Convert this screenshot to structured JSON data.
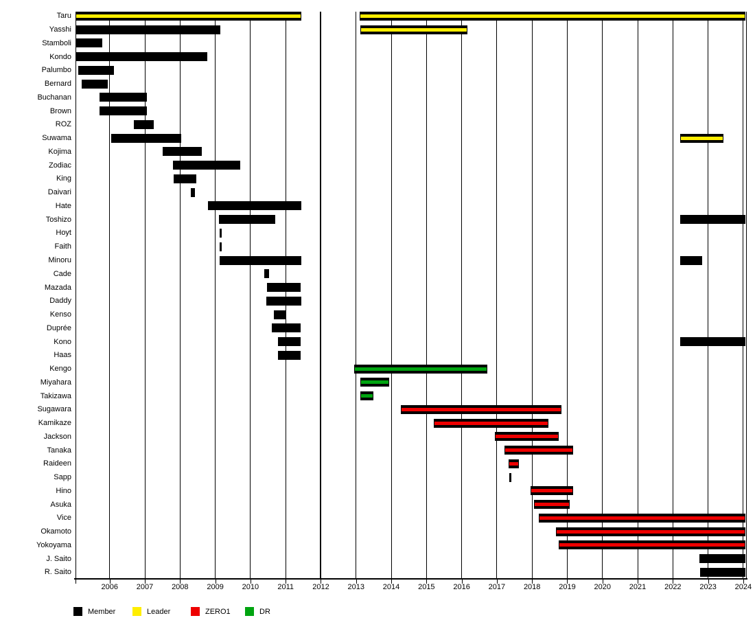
{
  "chart_data": {
    "type": "gantt",
    "title": "",
    "x_axis": {
      "range": [
        2005.03,
        2024.07
      ],
      "tick_years": [
        2006,
        2007,
        2008,
        2009,
        2010,
        2011,
        2012,
        2013,
        2014,
        2015,
        2016,
        2017,
        2018,
        2019,
        2020,
        2021,
        2022,
        2023,
        2024
      ]
    },
    "legend": [
      {
        "label": "Member",
        "color": "#000000"
      },
      {
        "label": "Leader",
        "color": "#ffee00"
      },
      {
        "label": "ZERO1",
        "color": "#ee0000"
      },
      {
        "label": "DR",
        "color": "#00a410"
      }
    ],
    "rows": [
      {
        "name": "Taru",
        "bars": [
          {
            "start": 2005.03,
            "end": 2011.45,
            "type": "Leader"
          },
          {
            "start": 2013.1,
            "end": 2024.06,
            "type": "Leader"
          }
        ]
      },
      {
        "name": "Yasshi",
        "bars": [
          {
            "start": 2005.03,
            "end": 2009.15,
            "type": "Member"
          },
          {
            "start": 2013.12,
            "end": 2016.17,
            "type": "Leader"
          }
        ]
      },
      {
        "name": "Stamboli",
        "bars": [
          {
            "start": 2005.03,
            "end": 2005.8,
            "type": "Member"
          }
        ]
      },
      {
        "name": "Kondo",
        "bars": [
          {
            "start": 2005.03,
            "end": 2008.77,
            "type": "Member"
          }
        ]
      },
      {
        "name": "Palumbo",
        "bars": [
          {
            "start": 2005.1,
            "end": 2006.13,
            "type": "Member"
          }
        ]
      },
      {
        "name": "Bernard",
        "bars": [
          {
            "start": 2005.2,
            "end": 2005.95,
            "type": "Member"
          }
        ]
      },
      {
        "name": "Buchanan",
        "bars": [
          {
            "start": 2005.72,
            "end": 2007.05,
            "type": "Member"
          }
        ]
      },
      {
        "name": "Brown",
        "bars": [
          {
            "start": 2005.72,
            "end": 2007.05,
            "type": "Member"
          }
        ]
      },
      {
        "name": "ROZ",
        "bars": [
          {
            "start": 2006.68,
            "end": 2007.26,
            "type": "Member"
          }
        ]
      },
      {
        "name": "Suwama",
        "bars": [
          {
            "start": 2006.05,
            "end": 2008.03,
            "type": "Member"
          },
          {
            "start": 2022.2,
            "end": 2023.43,
            "type": "Leader"
          }
        ]
      },
      {
        "name": "Kojima",
        "bars": [
          {
            "start": 2007.51,
            "end": 2008.61,
            "type": "Member"
          }
        ]
      },
      {
        "name": "Zodiac",
        "bars": [
          {
            "start": 2007.8,
            "end": 2009.71,
            "type": "Member"
          }
        ]
      },
      {
        "name": "King",
        "bars": [
          {
            "start": 2007.81,
            "end": 2008.47,
            "type": "Member"
          }
        ]
      },
      {
        "name": "Daivari",
        "bars": [
          {
            "start": 2008.31,
            "end": 2008.42,
            "type": "Member"
          }
        ]
      },
      {
        "name": "Hate",
        "bars": [
          {
            "start": 2008.8,
            "end": 2011.44,
            "type": "Member"
          }
        ]
      },
      {
        "name": "Toshizo",
        "bars": [
          {
            "start": 2009.11,
            "end": 2010.7,
            "type": "Member"
          },
          {
            "start": 2022.2,
            "end": 2024.06,
            "type": "Member"
          }
        ]
      },
      {
        "name": "Hoyt",
        "bars": [
          {
            "start": 2009.13,
            "end": 2009.18,
            "type": "Member"
          }
        ]
      },
      {
        "name": "Faith",
        "bars": [
          {
            "start": 2009.13,
            "end": 2009.18,
            "type": "Member"
          }
        ]
      },
      {
        "name": "Minoru",
        "bars": [
          {
            "start": 2009.12,
            "end": 2011.44,
            "type": "Member"
          },
          {
            "start": 2022.2,
            "end": 2022.83,
            "type": "Member"
          }
        ]
      },
      {
        "name": "Cade",
        "bars": [
          {
            "start": 2010.39,
            "end": 2010.53,
            "type": "Member"
          }
        ]
      },
      {
        "name": "Mazada",
        "bars": [
          {
            "start": 2010.47,
            "end": 2011.43,
            "type": "Member"
          }
        ]
      },
      {
        "name": "Daddy",
        "bars": [
          {
            "start": 2010.45,
            "end": 2011.44,
            "type": "Member"
          }
        ]
      },
      {
        "name": "Kenso",
        "bars": [
          {
            "start": 2010.66,
            "end": 2011.0,
            "type": "Member"
          }
        ]
      },
      {
        "name": "Duprée",
        "bars": [
          {
            "start": 2010.6,
            "end": 2011.43,
            "type": "Member"
          }
        ]
      },
      {
        "name": "Kono",
        "bars": [
          {
            "start": 2010.79,
            "end": 2011.42,
            "type": "Member"
          },
          {
            "start": 2022.2,
            "end": 2024.06,
            "type": "Member"
          }
        ]
      },
      {
        "name": "Haas",
        "bars": [
          {
            "start": 2010.79,
            "end": 2011.43,
            "type": "Member"
          }
        ]
      },
      {
        "name": "Kengo",
        "bars": [
          {
            "start": 2012.95,
            "end": 2016.73,
            "type": "DR"
          }
        ]
      },
      {
        "name": "Miyahara",
        "bars": [
          {
            "start": 2013.13,
            "end": 2013.95,
            "type": "DR"
          }
        ]
      },
      {
        "name": "Takizawa",
        "bars": [
          {
            "start": 2013.13,
            "end": 2013.5,
            "type": "DR"
          }
        ]
      },
      {
        "name": "Sugawara",
        "bars": [
          {
            "start": 2014.28,
            "end": 2018.84,
            "type": "ZERO1"
          }
        ]
      },
      {
        "name": "Kamikaze",
        "bars": [
          {
            "start": 2015.2,
            "end": 2018.46,
            "type": "ZERO1"
          }
        ]
      },
      {
        "name": "Jackson",
        "bars": [
          {
            "start": 2016.95,
            "end": 2018.76,
            "type": "ZERO1"
          }
        ]
      },
      {
        "name": "Tanaka",
        "bars": [
          {
            "start": 2017.22,
            "end": 2019.16,
            "type": "ZERO1"
          }
        ]
      },
      {
        "name": "Raideen",
        "bars": [
          {
            "start": 2017.34,
            "end": 2017.63,
            "type": "ZERO1"
          }
        ]
      },
      {
        "name": "Sapp",
        "bars": [
          {
            "start": 2017.36,
            "end": 2017.41,
            "type": "Member"
          }
        ]
      },
      {
        "name": "Hino",
        "bars": [
          {
            "start": 2017.95,
            "end": 2019.16,
            "type": "ZERO1"
          }
        ]
      },
      {
        "name": "Asuka",
        "bars": [
          {
            "start": 2018.05,
            "end": 2019.07,
            "type": "ZERO1"
          }
        ]
      },
      {
        "name": "Vice",
        "bars": [
          {
            "start": 2018.2,
            "end": 2024.06,
            "type": "ZERO1"
          }
        ]
      },
      {
        "name": "Okamoto",
        "bars": [
          {
            "start": 2018.68,
            "end": 2024.06,
            "type": "ZERO1"
          }
        ]
      },
      {
        "name": "Yokoyama",
        "bars": [
          {
            "start": 2018.76,
            "end": 2024.06,
            "type": "ZERO1"
          }
        ]
      },
      {
        "name": "J. Saito",
        "bars": [
          {
            "start": 2022.75,
            "end": 2024.06,
            "type": "Member"
          }
        ]
      },
      {
        "name": "R. Saito",
        "bars": [
          {
            "start": 2022.78,
            "end": 2024.06,
            "type": "Member"
          }
        ]
      }
    ]
  }
}
